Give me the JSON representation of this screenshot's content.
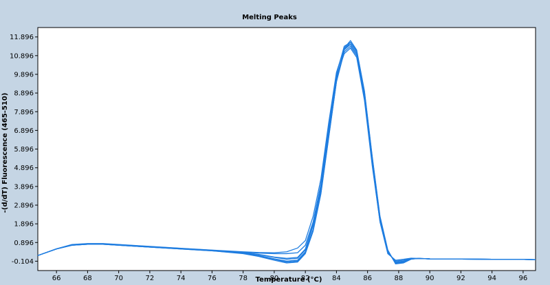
{
  "chart_data": {
    "type": "line",
    "title": "Melting Peaks",
    "xlabel": "Temperature (°C)",
    "ylabel": "-(d/dT) Fluorescence (465-510)",
    "xlim": [
      64.8,
      96.8
    ],
    "ylim": [
      -0.604,
      12.4
    ],
    "grid": false,
    "x_ticks": [
      66,
      68,
      70,
      72,
      74,
      76,
      78,
      80,
      82,
      84,
      86,
      88,
      90,
      92,
      94,
      96
    ],
    "y_ticks": [
      -0.104,
      0.896,
      1.896,
      2.896,
      3.896,
      4.896,
      5.896,
      6.896,
      7.896,
      8.896,
      9.896,
      10.896,
      11.896
    ],
    "series": [
      {
        "x": [
          64.8,
          66,
          67,
          68,
          69,
          70,
          72,
          74,
          76,
          78,
          79,
          80,
          80.8,
          81.5,
          82,
          82.5,
          83,
          83.5,
          84,
          84.5,
          84.9,
          85.3,
          85.8,
          86.3,
          86.8,
          87.3,
          87.8,
          88.3,
          88.8,
          89.3,
          90,
          92,
          94,
          96,
          96.8
        ],
        "values": [
          0.2,
          0.55,
          0.75,
          0.8,
          0.8,
          0.75,
          0.65,
          0.55,
          0.45,
          0.3,
          0.15,
          -0.05,
          -0.2,
          -0.15,
          0.3,
          1.5,
          3.5,
          6.5,
          9.5,
          11.3,
          11.7,
          11.2,
          9,
          5.5,
          2.3,
          0.5,
          -0.25,
          -0.2,
          0,
          0.05,
          0.02,
          0.01,
          0,
          -0.01,
          -0.02
        ]
      },
      {
        "x": [
          64.8,
          66,
          67,
          68,
          69,
          70,
          72,
          74,
          76,
          78,
          79,
          80,
          80.8,
          81.5,
          82,
          82.5,
          83,
          83.5,
          84,
          84.5,
          84.9,
          85.3,
          85.8,
          86.3,
          86.8,
          87.3,
          87.8,
          88.3,
          88.8,
          89.3,
          90,
          92,
          94,
          96,
          96.8
        ],
        "values": [
          0.2,
          0.55,
          0.77,
          0.82,
          0.82,
          0.77,
          0.67,
          0.57,
          0.47,
          0.35,
          0.25,
          0.1,
          0,
          0.05,
          0.5,
          1.8,
          3.8,
          6.8,
          9.7,
          11.2,
          11.5,
          11,
          8.8,
          5.3,
          2.2,
          0.45,
          -0.2,
          -0.15,
          0.02,
          0.04,
          0.02,
          0.01,
          0,
          -0.01,
          -0.02
        ]
      },
      {
        "x": [
          64.8,
          66,
          67,
          68,
          69,
          70,
          72,
          74,
          76,
          78,
          79,
          80,
          80.8,
          81.5,
          82,
          82.5,
          83,
          83.5,
          84,
          84.5,
          84.9,
          85.3,
          85.8,
          86.3,
          86.8,
          87.3,
          87.8,
          88.3,
          88.8,
          89.3,
          90,
          92,
          94,
          96,
          96.8
        ],
        "values": [
          0.2,
          0.55,
          0.75,
          0.8,
          0.8,
          0.75,
          0.65,
          0.56,
          0.47,
          0.38,
          0.33,
          0.3,
          0.3,
          0.35,
          0.75,
          2,
          4,
          7,
          9.8,
          11,
          11.3,
          10.8,
          8.5,
          5,
          2,
          0.35,
          -0.1,
          -0.05,
          0.05,
          0.04,
          0.02,
          0.01,
          0,
          -0.01,
          -0.02
        ]
      },
      {
        "x": [
          64.8,
          66,
          67,
          68,
          69,
          70,
          72,
          74,
          76,
          78,
          79,
          80,
          80.8,
          81.5,
          82,
          82.5,
          83,
          83.5,
          84,
          84.5,
          84.9,
          85.3,
          85.8,
          86.3,
          86.8,
          87.3,
          87.8,
          88.3,
          88.8,
          89.3,
          90,
          92,
          94,
          96,
          96.8
        ],
        "values": [
          0.2,
          0.55,
          0.78,
          0.83,
          0.83,
          0.78,
          0.68,
          0.58,
          0.48,
          0.36,
          0.26,
          0.12,
          0.05,
          0.1,
          0.55,
          1.9,
          4,
          7,
          9.9,
          11.4,
          11.6,
          11.1,
          8.9,
          5.4,
          2.2,
          0.4,
          -0.15,
          -0.1,
          0.03,
          0.04,
          0.02,
          0.01,
          0,
          -0.01,
          -0.02
        ]
      },
      {
        "x": [
          64.8,
          66,
          67,
          68,
          69,
          70,
          72,
          74,
          76,
          78,
          79,
          80,
          80.8,
          81.5,
          82,
          82.5,
          83,
          83.5,
          84,
          84.5,
          84.9,
          85.3,
          85.8,
          86.3,
          86.8,
          87.3,
          87.8,
          88.3,
          88.8,
          89.3,
          90,
          92,
          94,
          96,
          96.8
        ],
        "values": [
          0.2,
          0.55,
          0.76,
          0.81,
          0.81,
          0.76,
          0.66,
          0.56,
          0.46,
          0.33,
          0.2,
          0.02,
          -0.1,
          -0.05,
          0.4,
          1.6,
          3.6,
          6.6,
          9.5,
          11.1,
          11.4,
          10.9,
          8.7,
          5.2,
          2.1,
          0.4,
          -0.18,
          -0.12,
          0.02,
          0.04,
          0.02,
          0.01,
          0,
          -0.01,
          -0.02
        ]
      },
      {
        "x": [
          64.8,
          66,
          67,
          68,
          69,
          70,
          72,
          74,
          76,
          78,
          79,
          80,
          80.8,
          81.5,
          82,
          82.5,
          83,
          83.5,
          84,
          84.5,
          84.9,
          85.3,
          85.8,
          86.3,
          86.8,
          87.3,
          87.8,
          88.3,
          88.8,
          89.3,
          90,
          92,
          94,
          96,
          96.8
        ],
        "values": [
          0.2,
          0.56,
          0.79,
          0.84,
          0.84,
          0.79,
          0.69,
          0.59,
          0.49,
          0.4,
          0.36,
          0.35,
          0.4,
          0.6,
          1,
          2.3,
          4.3,
          7.3,
          10,
          11.3,
          11.5,
          11,
          8.7,
          5.1,
          2,
          0.3,
          -0.05,
          0,
          0.06,
          0.04,
          0.02,
          0.01,
          0,
          -0.01,
          -0.02
        ]
      },
      {
        "x": [
          64.8,
          66,
          67,
          68,
          69,
          70,
          72,
          74,
          76,
          78,
          79,
          80,
          80.8,
          81.5,
          82,
          82.5,
          83,
          83.5,
          84,
          84.5,
          84.9,
          85.3,
          85.8,
          86.3,
          86.8,
          87.3,
          87.8,
          88.3,
          88.8,
          89.3,
          90,
          92,
          94,
          96,
          96.8
        ],
        "values": [
          0.2,
          0.55,
          0.75,
          0.8,
          0.8,
          0.75,
          0.65,
          0.55,
          0.45,
          0.32,
          0.18,
          0,
          -0.15,
          -0.1,
          0.35,
          1.55,
          3.55,
          6.55,
          9.55,
          11.25,
          11.6,
          11.15,
          8.95,
          5.45,
          2.25,
          0.45,
          -0.22,
          -0.18,
          0.01,
          0.05,
          0.02,
          0.01,
          0,
          -0.01,
          -0.02
        ]
      }
    ]
  },
  "colors": {
    "line": "#1f7de0",
    "plot_bg": "#ffffff",
    "frame_bg": "#c5d5e4",
    "axis": "#000000"
  }
}
